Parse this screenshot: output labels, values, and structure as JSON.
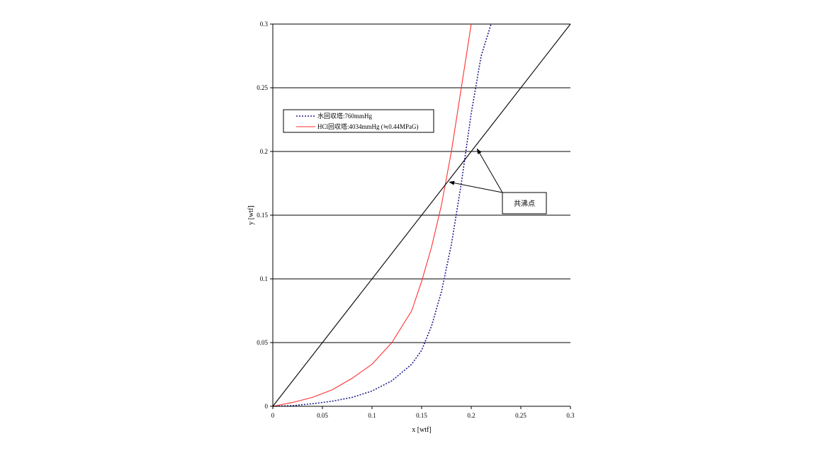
{
  "chart_data": {
    "type": "line",
    "xlabel": "x [wtf]",
    "ylabel": "y [wtf]",
    "xlim": [
      0,
      0.3
    ],
    "ylim": [
      0,
      0.3
    ],
    "x_ticks": [
      "0",
      "0.05",
      "0.1",
      "0.15",
      "0.2",
      "0.25",
      "0.3"
    ],
    "y_ticks": [
      "0",
      "0.05",
      "0.1",
      "0.15",
      "0.2",
      "0.25",
      "0.3"
    ],
    "grid": "horizontal",
    "legend": {
      "placement": "upper-left",
      "entries": [
        "水回収塔:760mmHg",
        "HCl回収塔:4034mmHg (≒0.44MPaG)"
      ]
    },
    "series": [
      {
        "name": "水回収塔:760mmHg",
        "color": "#1f1f8f",
        "style": "dotted",
        "x": [
          0,
          0.02,
          0.04,
          0.06,
          0.08,
          0.1,
          0.12,
          0.14,
          0.15,
          0.16,
          0.17,
          0.18,
          0.19,
          0.2,
          0.21,
          0.22
        ],
        "y": [
          0,
          0.0005,
          0.002,
          0.004,
          0.007,
          0.012,
          0.02,
          0.033,
          0.044,
          0.063,
          0.09,
          0.127,
          0.175,
          0.23,
          0.275,
          0.3
        ]
      },
      {
        "name": "HCl回収塔:4034mmHg (≒0.44MPaG)",
        "color": "#ff3030",
        "style": "solid",
        "x": [
          0,
          0.02,
          0.04,
          0.06,
          0.08,
          0.1,
          0.12,
          0.14,
          0.15,
          0.16,
          0.17,
          0.18,
          0.19,
          0.2
        ],
        "y": [
          0,
          0.003,
          0.007,
          0.013,
          0.022,
          0.033,
          0.05,
          0.075,
          0.098,
          0.125,
          0.158,
          0.2,
          0.25,
          0.3
        ]
      },
      {
        "name": "",
        "color": "#000000",
        "style": "solid",
        "x": [
          0,
          0.3
        ],
        "y": [
          0,
          0.3
        ]
      }
    ],
    "annotations": [
      {
        "text": "共沸点",
        "targets": [
          {
            "x": 0.178,
            "y": 0.176
          },
          {
            "x": 0.206,
            "y": 0.202
          }
        ]
      }
    ]
  }
}
